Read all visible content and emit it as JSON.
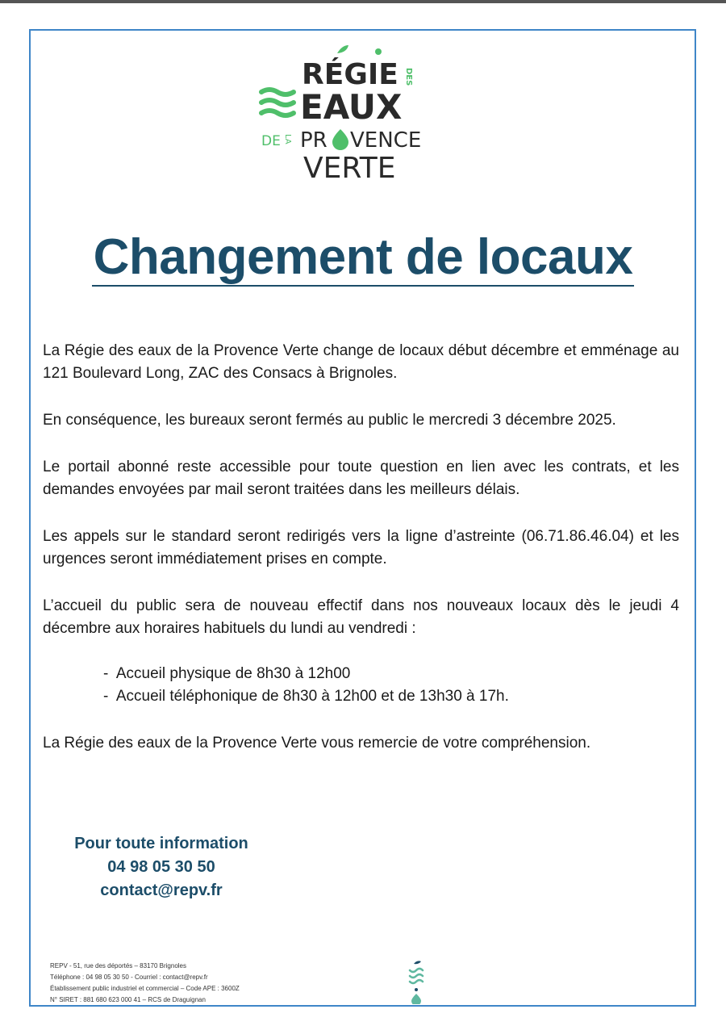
{
  "logo": {
    "text": "RÉGIE DES EAUX DE LA PROVENCE VERTE",
    "colors": {
      "dark": "#2a2a2a",
      "green": "#4fbf6a"
    }
  },
  "title": "Changement de locaux",
  "paragraphs": [
    "La Régie des eaux de la Provence Verte change de locaux début décembre et emménage au 121 Boulevard Long, ZAC des Consacs à Brignoles.",
    "En conséquence, les bureaux seront fermés au public le mercredi 3 décembre 2025.",
    "Le portail abonné reste accessible pour toute question en lien avec les contrats, et les demandes envoyées par mail seront traitées dans les meilleurs délais.",
    "Les appels sur le standard seront redirigés vers la ligne d’astreinte (06.71.86.46.04) et les urgences seront immédiatement prises en compte.",
    "L’accueil du public sera de nouveau effectif dans nos nouveaux locaux dès le jeudi 4 décembre aux horaires habituels du lundi au vendredi :"
  ],
  "hours": [
    "Accueil physique de 8h30 à 12h00",
    "Accueil téléphonique de 8h30 à 12h00 et de 13h30 à 17h."
  ],
  "closing": "La Régie des eaux de la Provence Verte vous remercie de votre compréhension.",
  "contact": {
    "heading": "Pour toute information",
    "phone": "04 98 05 30 50",
    "email": "contact@repv.fr"
  },
  "footer": [
    "REPV - 51, rue des déportés – 83170 Brignoles",
    "Téléphone : 04 98 05 30 50 - Courriel : contact@repv.fr",
    "Établissement public industriel et commercial – Code APE : 3600Z",
    "N° SIRET : 881 680 623 000 41 – RCS de Draguignan"
  ],
  "colors": {
    "title": "#1c4d69",
    "frame": "#3f86c8"
  }
}
